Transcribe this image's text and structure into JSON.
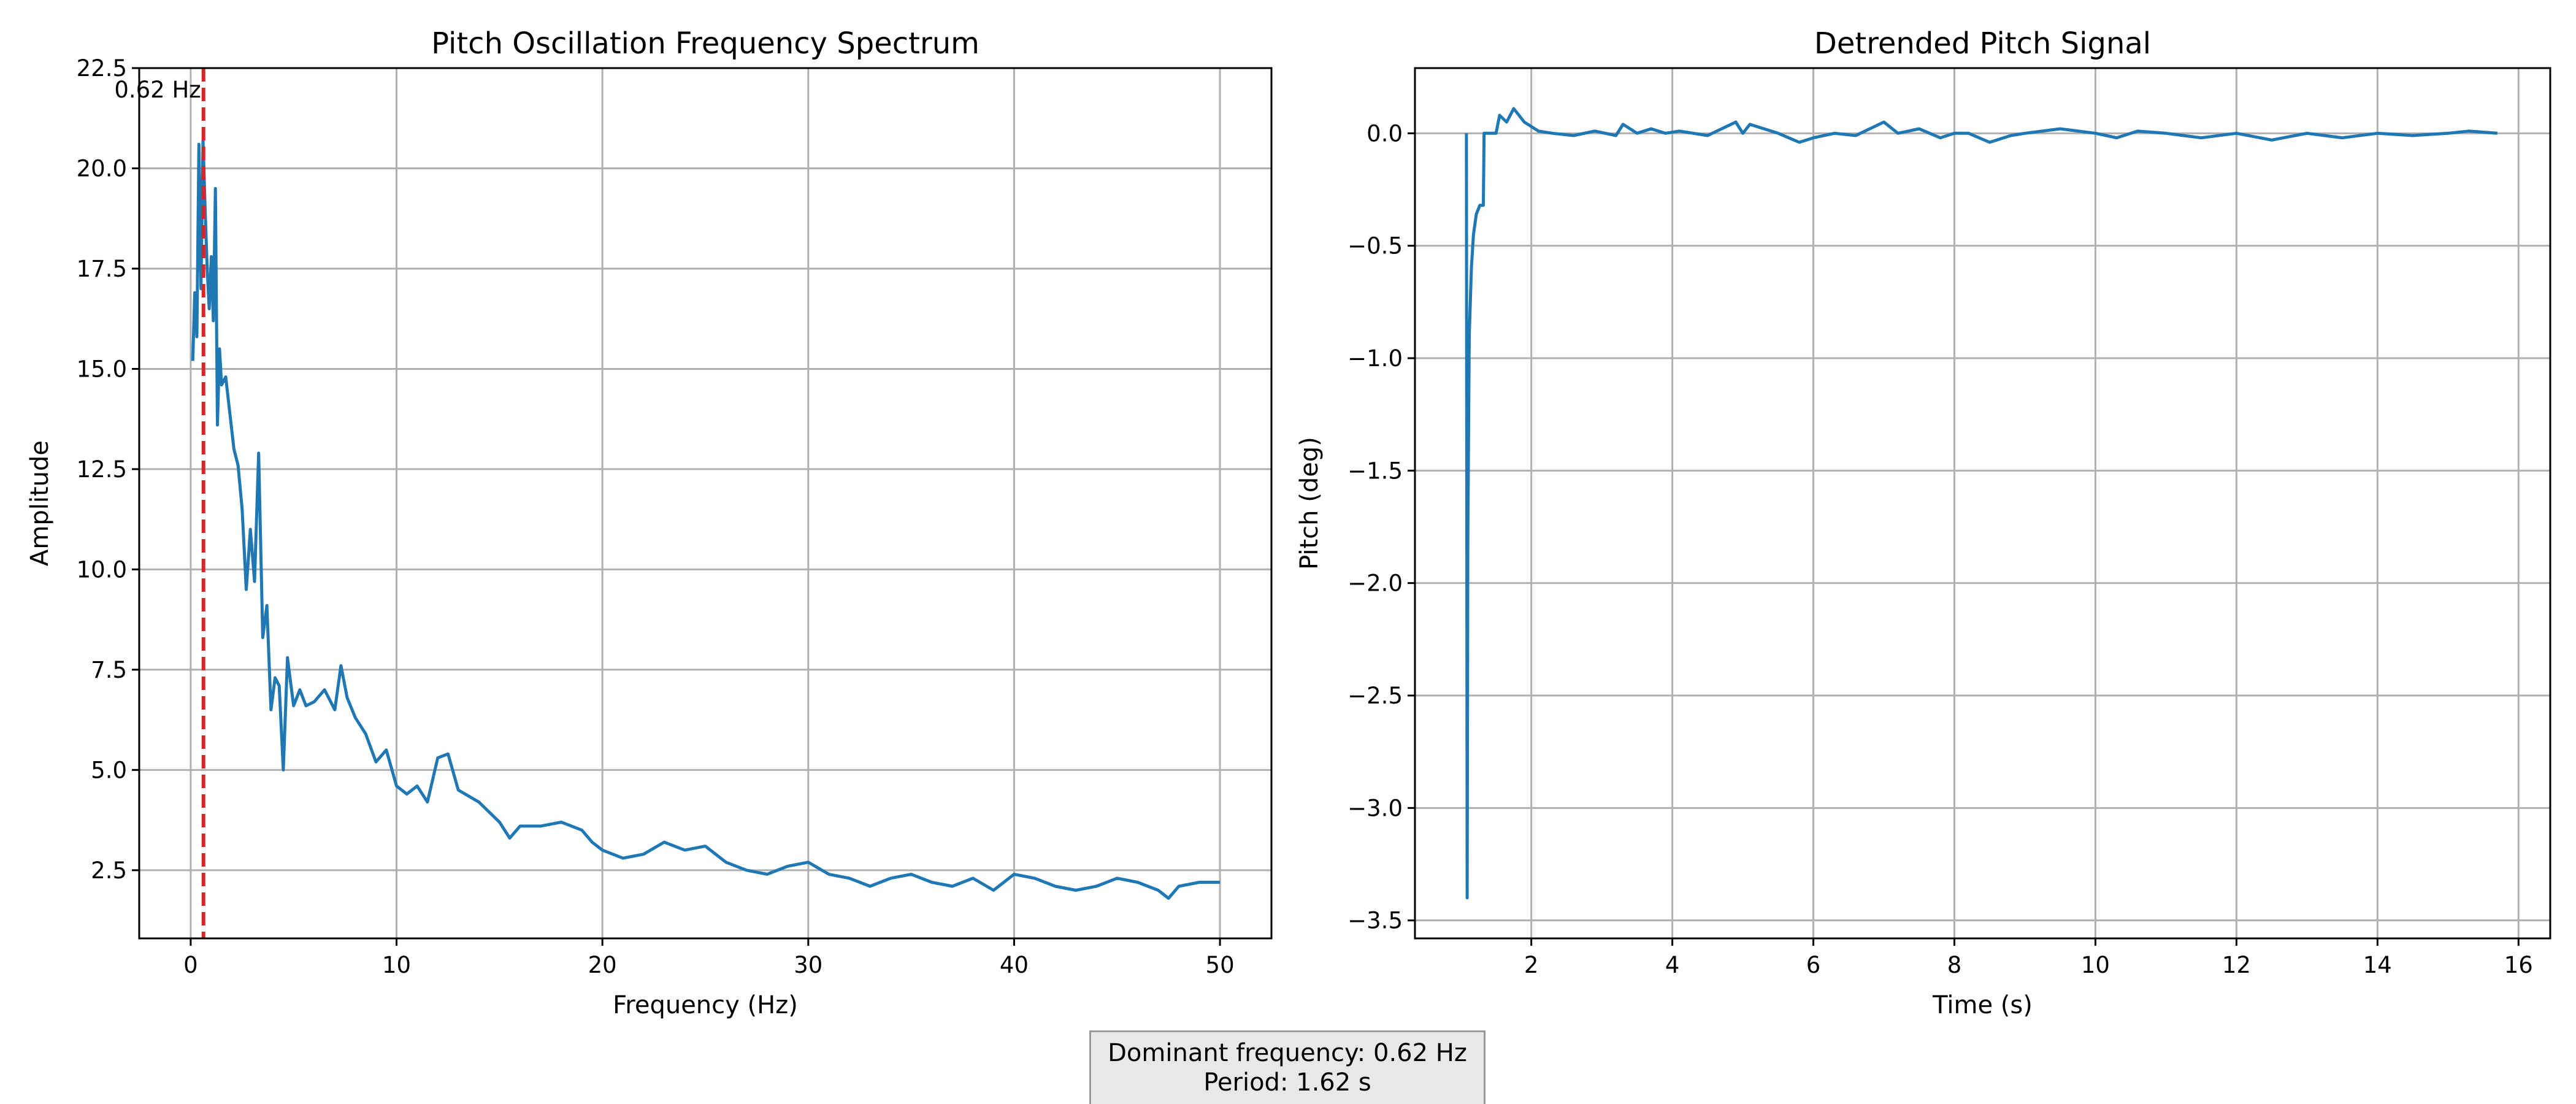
{
  "chart_data": [
    {
      "type": "line",
      "title": "Pitch Oscillation Frequency Spectrum",
      "xlabel": "Frequency (Hz)",
      "ylabel": "Amplitude",
      "xlim": [
        -2.5,
        52.5
      ],
      "ylim": [
        0.8,
        22.5
      ],
      "xticks": [
        0,
        10,
        20,
        30,
        40,
        50
      ],
      "yticks": [
        2.5,
        5.0,
        7.5,
        10.0,
        12.5,
        15.0,
        17.5,
        20.0,
        22.5
      ],
      "grid": true,
      "color": "#1f77b4",
      "marker_line": {
        "x": 0.62,
        "label": "0.62 Hz",
        "color": "#d62728",
        "style": "dashed"
      },
      "series": [
        {
          "x": [
            0.1,
            0.2,
            0.3,
            0.4,
            0.5,
            0.6,
            0.7,
            0.8,
            0.9,
            1.0,
            1.1,
            1.2,
            1.3,
            1.4,
            1.5,
            1.7,
            1.9,
            2.1,
            2.3,
            2.5,
            2.7,
            2.9,
            3.1,
            3.3,
            3.5,
            3.7,
            3.9,
            4.1,
            4.3,
            4.5,
            4.7,
            5.0,
            5.3,
            5.6,
            6.0,
            6.5,
            7.0,
            7.3,
            7.6,
            8.0,
            8.5,
            9.0,
            9.5,
            10.0,
            10.5,
            11.0,
            11.5,
            12.0,
            12.5,
            13.0,
            14.0,
            15.0,
            15.5,
            16.0,
            17.0,
            18.0,
            19.0,
            19.5,
            20.0,
            21.0,
            22.0,
            23.0,
            24.0,
            25.0,
            26.0,
            27.0,
            28.0,
            29.0,
            30.0,
            31.0,
            32.0,
            33.0,
            34.0,
            35.0,
            36.0,
            37.0,
            38.0,
            39.0,
            40.0,
            41.0,
            42.0,
            43.0,
            44.0,
            45.0,
            46.0,
            47.0,
            47.5,
            48.0,
            49.0,
            50.0
          ],
          "y": [
            15.2,
            16.9,
            15.8,
            20.6,
            17.0,
            20.7,
            19.0,
            17.5,
            16.5,
            17.8,
            16.2,
            19.5,
            13.6,
            15.5,
            14.6,
            14.8,
            13.9,
            13.0,
            12.6,
            11.5,
            9.5,
            11.0,
            9.7,
            12.9,
            8.3,
            9.1,
            6.5,
            7.3,
            7.1,
            5.0,
            7.8,
            6.6,
            7.0,
            6.6,
            6.7,
            7.0,
            6.5,
            7.6,
            6.8,
            6.3,
            5.9,
            5.2,
            5.5,
            4.6,
            4.4,
            4.6,
            4.2,
            5.3,
            5.4,
            4.5,
            4.2,
            3.7,
            3.3,
            3.6,
            3.6,
            3.7,
            3.5,
            3.2,
            3.0,
            2.8,
            2.9,
            3.2,
            3.0,
            3.1,
            2.7,
            2.5,
            2.4,
            2.6,
            2.7,
            2.4,
            2.3,
            2.1,
            2.3,
            2.4,
            2.2,
            2.1,
            2.3,
            2.0,
            2.4,
            2.3,
            2.1,
            2.0,
            2.1,
            2.3,
            2.2,
            2.0,
            1.8,
            2.1,
            2.2,
            2.2
          ]
        }
      ]
    },
    {
      "type": "line",
      "title": "Detrended Pitch Signal",
      "xlabel": "Time (s)",
      "ylabel": "Pitch (deg)",
      "xlim": [
        0.35,
        16.45
      ],
      "ylim": [
        -3.58,
        0.29
      ],
      "xticks": [
        2,
        4,
        6,
        8,
        10,
        12,
        14,
        16
      ],
      "yticks": [
        0.0,
        -0.5,
        -1.0,
        -1.5,
        -2.0,
        -2.5,
        -3.0,
        -3.5
      ],
      "grid": true,
      "color": "#1f77b4",
      "series": [
        {
          "x": [
            1.08,
            1.09,
            1.1,
            1.12,
            1.15,
            1.18,
            1.22,
            1.27,
            1.32,
            1.33,
            1.5,
            1.55,
            1.65,
            1.75,
            1.9,
            2.1,
            2.3,
            2.6,
            2.9,
            3.2,
            3.3,
            3.5,
            3.7,
            3.9,
            4.1,
            4.5,
            4.9,
            5.0,
            5.1,
            5.3,
            5.5,
            5.8,
            6.0,
            6.3,
            6.6,
            7.0,
            7.2,
            7.5,
            7.8,
            8.0,
            8.2,
            8.5,
            8.8,
            9.0,
            9.5,
            10.0,
            10.3,
            10.6,
            11.0,
            11.5,
            12.0,
            12.5,
            13.0,
            13.5,
            14.0,
            14.5,
            15.0,
            15.3,
            15.7
          ],
          "y": [
            0.0,
            -3.4,
            -1.8,
            -0.9,
            -0.6,
            -0.45,
            -0.36,
            -0.32,
            -0.32,
            0.0,
            0.0,
            0.08,
            0.05,
            0.11,
            0.05,
            0.01,
            0.0,
            -0.01,
            0.01,
            -0.01,
            0.04,
            0.0,
            0.02,
            0.0,
            0.01,
            -0.01,
            0.05,
            0.0,
            0.04,
            0.02,
            0.0,
            -0.04,
            -0.02,
            0.0,
            -0.01,
            0.05,
            0.0,
            0.02,
            -0.02,
            0.0,
            0.0,
            -0.04,
            -0.01,
            0.0,
            0.02,
            0.0,
            -0.02,
            0.01,
            0.0,
            -0.02,
            0.0,
            -0.03,
            0.0,
            -0.02,
            0.0,
            -0.01,
            0.0,
            0.01,
            0.0
          ]
        }
      ]
    }
  ],
  "summary": {
    "line1": "Dominant frequency: 0.62 Hz",
    "line2": "Period: 1.62 s"
  }
}
